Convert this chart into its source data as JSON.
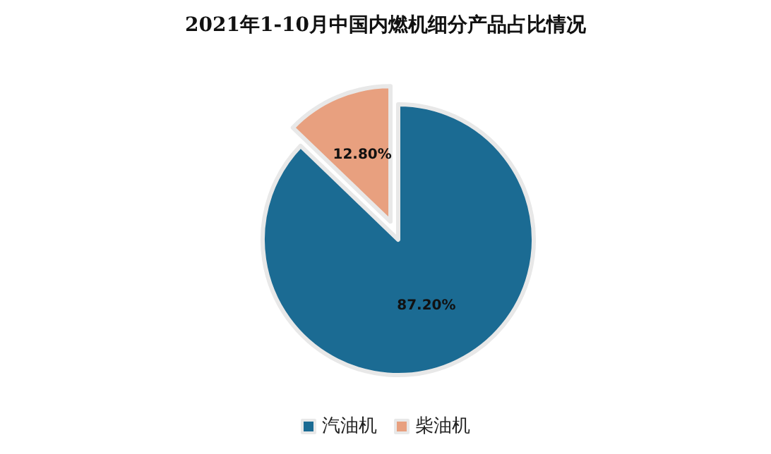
{
  "chart_data": {
    "type": "pie",
    "title": "2021年1-10月中国内燃机细分产品占比情况",
    "categories": [
      "汽油机",
      "柴油机"
    ],
    "values": [
      87.2,
      12.8
    ],
    "value_labels": [
      "87.20%",
      "12.80%"
    ],
    "colors": [
      "#1b6b93",
      "#e8a07f"
    ],
    "legend": "bottom"
  }
}
